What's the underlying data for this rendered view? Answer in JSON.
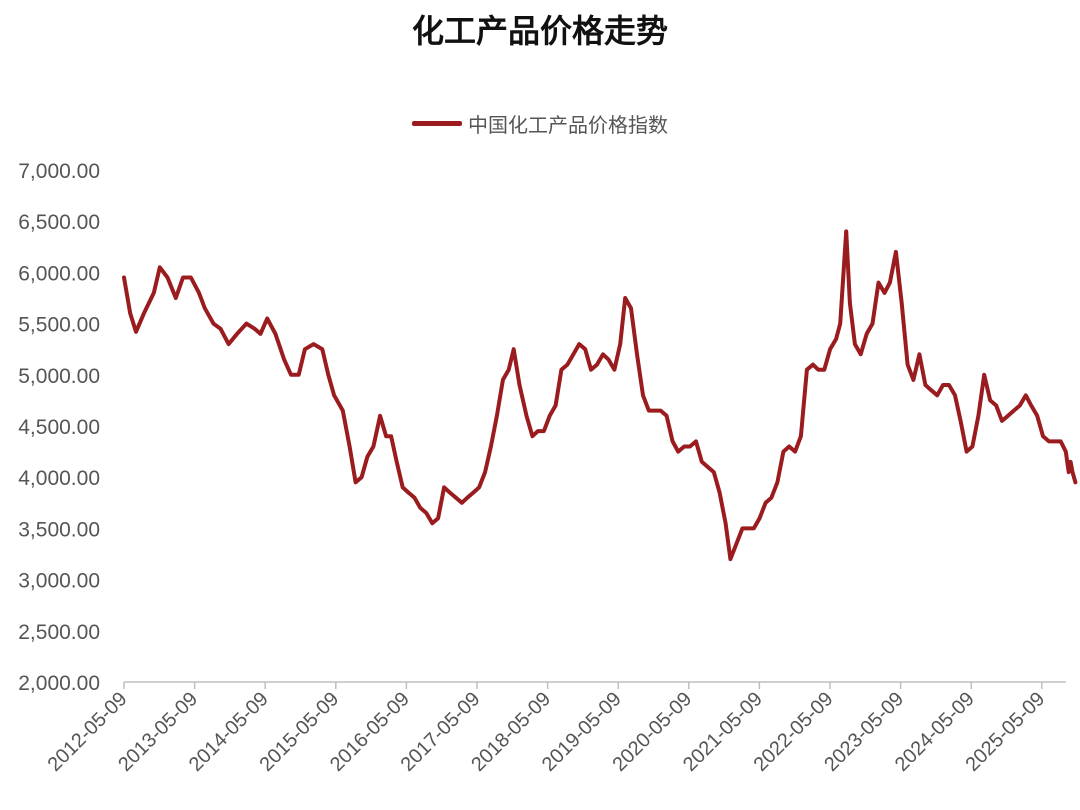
{
  "chart_data": {
    "type": "line",
    "title": "化工产品价格走势",
    "xlabel": "",
    "ylabel": "",
    "ylim": [
      2000,
      7000
    ],
    "yticks": [
      "2,000.00",
      "2,500.00",
      "3,000.00",
      "3,500.00",
      "4,000.00",
      "4,500.00",
      "5,000.00",
      "5,500.00",
      "6,000.00",
      "6,500.00",
      "7,000.00"
    ],
    "x_tick_labels": [
      "2012-05-09",
      "2013-05-09",
      "2014-05-09",
      "2015-05-09",
      "2016-05-09",
      "2017-05-09",
      "2018-05-09",
      "2019-05-09",
      "2020-05-09",
      "2021-05-09",
      "2022-05-09",
      "2023-05-09",
      "2024-05-09",
      "2025-05-09"
    ],
    "x_range": [
      "2012-05-09",
      "2025-10-30"
    ],
    "legend_position": "top-center",
    "grid": false,
    "series": [
      {
        "name": "中国化工产品价格指数",
        "color": "#9b1c1f",
        "points": [
          [
            "2012-05-09",
            5950
          ],
          [
            "2012-06-10",
            5600
          ],
          [
            "2012-07-10",
            5420
          ],
          [
            "2012-08-20",
            5600
          ],
          [
            "2012-10-10",
            5800
          ],
          [
            "2012-11-10",
            6050
          ],
          [
            "2012-12-20",
            5950
          ],
          [
            "2013-02-01",
            5750
          ],
          [
            "2013-03-10",
            5950
          ],
          [
            "2013-04-20",
            5950
          ],
          [
            "2013-06-01",
            5800
          ],
          [
            "2013-07-01",
            5650
          ],
          [
            "2013-08-15",
            5500
          ],
          [
            "2013-09-20",
            5450
          ],
          [
            "2013-11-01",
            5300
          ],
          [
            "2013-12-15",
            5400
          ],
          [
            "2014-02-01",
            5500
          ],
          [
            "2014-03-15",
            5450
          ],
          [
            "2014-04-15",
            5400
          ],
          [
            "2014-05-20",
            5550
          ],
          [
            "2014-07-01",
            5400
          ],
          [
            "2014-08-15",
            5150
          ],
          [
            "2014-09-20",
            5000
          ],
          [
            "2014-10-30",
            5000
          ],
          [
            "2014-12-01",
            5250
          ],
          [
            "2015-01-15",
            5300
          ],
          [
            "2015-03-01",
            5250
          ],
          [
            "2015-04-01",
            5000
          ],
          [
            "2015-05-01",
            4800
          ],
          [
            "2015-06-15",
            4650
          ],
          [
            "2015-07-20",
            4300
          ],
          [
            "2015-08-20",
            3950
          ],
          [
            "2015-09-20",
            4000
          ],
          [
            "2015-10-20",
            4200
          ],
          [
            "2015-11-20",
            4300
          ],
          [
            "2015-12-25",
            4600
          ],
          [
            "2016-01-25",
            4400
          ],
          [
            "2016-02-20",
            4400
          ],
          [
            "2016-03-20",
            4150
          ],
          [
            "2016-04-20",
            3900
          ],
          [
            "2016-05-20",
            3850
          ],
          [
            "2016-06-20",
            3800
          ],
          [
            "2016-07-20",
            3700
          ],
          [
            "2016-08-20",
            3650
          ],
          [
            "2016-09-20",
            3550
          ],
          [
            "2016-10-20",
            3600
          ],
          [
            "2016-11-20",
            3900
          ],
          [
            "2016-12-20",
            3850
          ],
          [
            "2017-01-20",
            3800
          ],
          [
            "2017-02-20",
            3750
          ],
          [
            "2017-03-20",
            3800
          ],
          [
            "2017-04-20",
            3850
          ],
          [
            "2017-05-20",
            3900
          ],
          [
            "2017-06-20",
            4050
          ],
          [
            "2017-07-20",
            4300
          ],
          [
            "2017-08-20",
            4600
          ],
          [
            "2017-09-20",
            4950
          ],
          [
            "2017-10-20",
            5050
          ],
          [
            "2017-11-15",
            5250
          ],
          [
            "2017-12-15",
            4900
          ],
          [
            "2018-01-20",
            4600
          ],
          [
            "2018-02-20",
            4400
          ],
          [
            "2018-03-20",
            4450
          ],
          [
            "2018-04-20",
            4450
          ],
          [
            "2018-05-20",
            4600
          ],
          [
            "2018-06-20",
            4700
          ],
          [
            "2018-07-20",
            5050
          ],
          [
            "2018-08-20",
            5100
          ],
          [
            "2018-09-20",
            5200
          ],
          [
            "2018-10-20",
            5300
          ],
          [
            "2018-11-20",
            5250
          ],
          [
            "2018-12-20",
            5050
          ],
          [
            "2019-01-20",
            5100
          ],
          [
            "2019-02-20",
            5200
          ],
          [
            "2019-03-20",
            5150
          ],
          [
            "2019-04-20",
            5050
          ],
          [
            "2019-05-20",
            5300
          ],
          [
            "2019-06-15",
            5750
          ],
          [
            "2019-07-15",
            5650
          ],
          [
            "2019-08-15",
            5200
          ],
          [
            "2019-09-15",
            4800
          ],
          [
            "2019-10-15",
            4650
          ],
          [
            "2019-11-15",
            4650
          ],
          [
            "2019-12-15",
            4650
          ],
          [
            "2020-01-15",
            4600
          ],
          [
            "2020-02-15",
            4350
          ],
          [
            "2020-03-15",
            4250
          ],
          [
            "2020-04-15",
            4300
          ],
          [
            "2020-05-15",
            4300
          ],
          [
            "2020-06-15",
            4350
          ],
          [
            "2020-07-15",
            4150
          ],
          [
            "2020-08-15",
            4100
          ],
          [
            "2020-09-15",
            4050
          ],
          [
            "2020-10-15",
            3850
          ],
          [
            "2020-11-15",
            3550
          ],
          [
            "2020-12-10",
            3200
          ],
          [
            "2021-01-10",
            3350
          ],
          [
            "2021-02-10",
            3500
          ],
          [
            "2021-03-10",
            3500
          ],
          [
            "2021-04-10",
            3500
          ],
          [
            "2021-05-10",
            3600
          ],
          [
            "2021-06-10",
            3750
          ],
          [
            "2021-07-10",
            3800
          ],
          [
            "2021-08-10",
            3950
          ],
          [
            "2021-09-10",
            4250
          ],
          [
            "2021-10-10",
            4300
          ],
          [
            "2021-11-10",
            4250
          ],
          [
            "2021-12-10",
            4400
          ],
          [
            "2022-01-10",
            5050
          ],
          [
            "2022-02-10",
            5100
          ],
          [
            "2022-03-10",
            5050
          ],
          [
            "2022-04-10",
            5050
          ],
          [
            "2022-05-10",
            5250
          ],
          [
            "2022-06-10",
            5350
          ],
          [
            "2022-07-01",
            5500
          ],
          [
            "2022-08-01",
            6400
          ],
          [
            "2022-08-20",
            5700
          ],
          [
            "2022-09-15",
            5300
          ],
          [
            "2022-10-15",
            5200
          ],
          [
            "2022-11-15",
            5400
          ],
          [
            "2022-12-15",
            5500
          ],
          [
            "2023-01-15",
            5900
          ],
          [
            "2023-02-15",
            5800
          ],
          [
            "2023-03-15",
            5900
          ],
          [
            "2023-04-15",
            6200
          ],
          [
            "2023-05-15",
            5700
          ],
          [
            "2023-06-15",
            5100
          ],
          [
            "2023-07-15",
            4950
          ],
          [
            "2023-08-15",
            5200
          ],
          [
            "2023-09-15",
            4900
          ],
          [
            "2023-10-15",
            4850
          ],
          [
            "2023-11-15",
            4800
          ],
          [
            "2023-12-15",
            4900
          ],
          [
            "2024-01-15",
            4900
          ],
          [
            "2024-02-15",
            4800
          ],
          [
            "2024-03-15",
            4550
          ],
          [
            "2024-04-15",
            4250
          ],
          [
            "2024-05-15",
            4300
          ],
          [
            "2024-06-15",
            4600
          ],
          [
            "2024-07-15",
            5000
          ],
          [
            "2024-08-15",
            4750
          ],
          [
            "2024-09-15",
            4700
          ],
          [
            "2024-10-15",
            4550
          ],
          [
            "2024-11-15",
            4600
          ],
          [
            "2024-12-15",
            4650
          ],
          [
            "2025-01-15",
            4700
          ],
          [
            "2025-02-15",
            4800
          ],
          [
            "2025-03-15",
            4700
          ],
          [
            "2025-04-15",
            4600
          ],
          [
            "2025-05-15",
            4400
          ],
          [
            "2025-06-15",
            4350
          ],
          [
            "2025-07-15",
            4350
          ],
          [
            "2025-08-15",
            4350
          ],
          [
            "2025-09-10",
            4250
          ],
          [
            "2025-09-25",
            4050
          ],
          [
            "2025-10-05",
            4150
          ],
          [
            "2025-10-15",
            4050
          ],
          [
            "2025-10-30",
            3950
          ]
        ]
      }
    ]
  }
}
